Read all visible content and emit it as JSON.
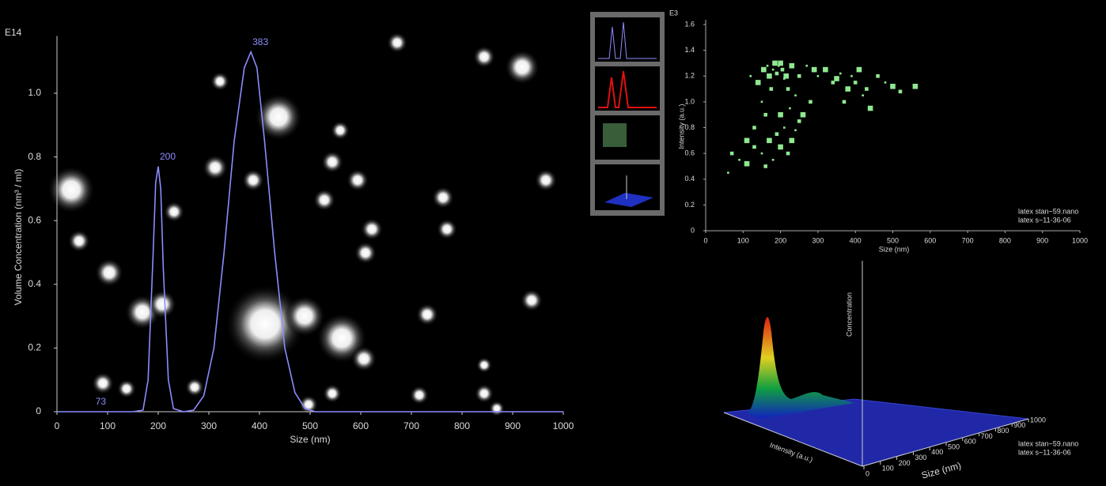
{
  "chart_data": [
    {
      "type": "line",
      "exponent": "E14",
      "x_label": "Size (nm)",
      "y_label": "Volume Concentration (nm³ / ml)",
      "xlim": [
        0,
        1000
      ],
      "ylim": [
        0,
        1.18
      ],
      "xticks": [
        0,
        100,
        200,
        300,
        400,
        500,
        600,
        700,
        800,
        900,
        1000
      ],
      "yticks": [
        0,
        0.2,
        0.4,
        0.6,
        0.8,
        {
          "value": 1,
          "label": "1.0"
        }
      ],
      "series": [
        {
          "name": "latex stan~59.nano",
          "color": "#8c8cff",
          "x": [
            0,
            150,
            170,
            180,
            190,
            195,
            200,
            205,
            210,
            220,
            230,
            250,
            270,
            290,
            310,
            330,
            350,
            370,
            383,
            395,
            410,
            430,
            450,
            470,
            490,
            510,
            550,
            1000
          ],
          "values": [
            0,
            0,
            0.005,
            0.1,
            0.5,
            0.72,
            0.77,
            0.7,
            0.45,
            0.1,
            0.01,
            0,
            0.005,
            0.05,
            0.2,
            0.5,
            0.85,
            1.08,
            1.13,
            1.08,
            0.85,
            0.5,
            0.2,
            0.06,
            0.01,
            0,
            0,
            0
          ]
        }
      ],
      "annotations": [
        {
          "text": "200",
          "x": 200,
          "y": 0.77
        },
        {
          "text": "383",
          "x": 383,
          "y": 1.13
        },
        {
          "text": "73",
          "x": 73,
          "y": 0
        }
      ]
    },
    {
      "type": "scatter",
      "exponent": "E3",
      "x_label": "Size (nm)",
      "y_label": "Intensity (a.u.)",
      "xlim": [
        0,
        1000
      ],
      "ylim": [
        0,
        1.6
      ],
      "xticks": [
        0,
        100,
        200,
        300,
        400,
        500,
        600,
        700,
        800,
        900,
        1000
      ],
      "yticks": [
        0,
        0.2,
        0.4,
        0.6,
        0.8,
        {
          "value": 1,
          "label": "1.0"
        },
        1.2,
        1.4,
        1.6
      ],
      "legend": [
        "latex stan~59.nano",
        "latex s~11-36-06"
      ],
      "series": [
        {
          "color": "#8fe88f",
          "x": [
            60,
            70,
            90,
            110,
            120,
            130,
            140,
            150,
            155,
            160,
            165,
            170,
            175,
            180,
            185,
            190,
            195,
            200,
            205,
            210,
            215,
            220,
            225,
            230,
            240,
            250,
            260,
            270,
            280,
            290,
            300,
            320,
            340,
            350,
            360,
            370,
            380,
            390,
            400,
            410,
            420,
            430,
            440,
            460,
            480,
            500,
            520,
            560,
            150,
            170,
            190,
            200,
            210,
            230,
            250,
            180,
            200,
            220,
            160,
            240,
            130,
            110
          ],
          "y": [
            0.45,
            0.6,
            0.55,
            0.7,
            1.2,
            0.8,
            1.15,
            1.0,
            1.25,
            0.9,
            1.28,
            1.2,
            1.1,
            1.25,
            1.3,
            1.22,
            1.28,
            1.3,
            1.25,
            1.18,
            1.2,
            1.1,
            0.95,
            1.28,
            1.05,
            1.2,
            0.9,
            1.28,
            1.0,
            1.25,
            1.2,
            1.25,
            1.15,
            1.18,
            1.22,
            1.0,
            1.1,
            1.2,
            1.15,
            1.25,
            1.05,
            1.1,
            0.95,
            1.2,
            1.15,
            1.12,
            1.08,
            1.12,
            0.6,
            0.7,
            0.75,
            0.65,
            0.8,
            0.7,
            0.85,
            0.55,
            0.9,
            0.6,
            0.5,
            0.78,
            0.65,
            0.52
          ]
        }
      ]
    },
    {
      "type": "surface",
      "x_label": "Size (nm)",
      "y_label": "Intensity (a.u.)",
      "z_label": "Concentration",
      "xlim": [
        0,
        1000
      ],
      "xticks": [
        0,
        100,
        200,
        300,
        400,
        500,
        600,
        700,
        800,
        900,
        1000
      ],
      "legend": [
        "latex stan~59.nano",
        "latex s~11-36-06"
      ]
    }
  ]
}
